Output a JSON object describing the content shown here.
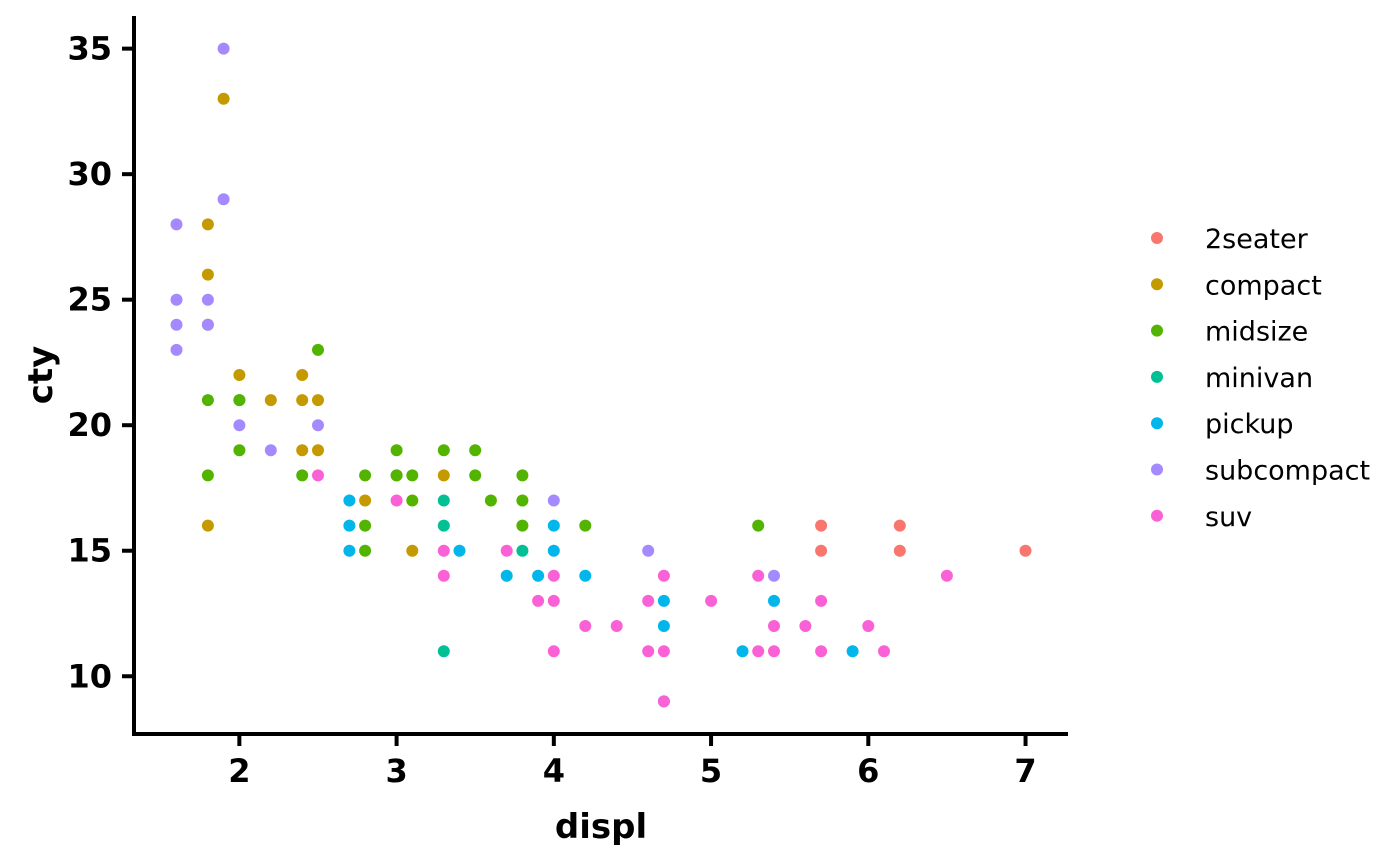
{
  "chart_data": {
    "type": "scatter",
    "xlabel": "displ",
    "ylabel": "cty",
    "xlim": [
      1.33,
      7.27
    ],
    "ylim": [
      7.7,
      36.3
    ],
    "x_ticks": [
      2,
      3,
      4,
      5,
      6,
      7
    ],
    "y_ticks": [
      10,
      15,
      20,
      25,
      30,
      35
    ],
    "grid": false,
    "legend_position": "right",
    "series": [
      {
        "name": "2seater",
        "color": "#F8766D",
        "points": [
          [
            5.7,
            16
          ],
          [
            5.7,
            15
          ],
          [
            6.2,
            16
          ],
          [
            6.2,
            15
          ],
          [
            7.0,
            15
          ]
        ]
      },
      {
        "name": "compact",
        "color": "#C49A00",
        "points": [
          [
            1.8,
            28
          ],
          [
            1.8,
            26
          ],
          [
            1.8,
            24
          ],
          [
            1.8,
            16
          ],
          [
            1.9,
            33
          ],
          [
            2.0,
            22
          ],
          [
            2.0,
            21
          ],
          [
            2.2,
            21
          ],
          [
            2.4,
            22
          ],
          [
            2.4,
            21
          ],
          [
            2.4,
            19
          ],
          [
            2.5,
            21
          ],
          [
            2.5,
            19
          ],
          [
            2.8,
            17
          ],
          [
            3.0,
            18
          ],
          [
            3.1,
            15
          ],
          [
            3.3,
            18
          ]
        ]
      },
      {
        "name": "midsize",
        "color": "#53B400",
        "points": [
          [
            1.8,
            21
          ],
          [
            1.8,
            18
          ],
          [
            2.0,
            21
          ],
          [
            2.0,
            19
          ],
          [
            2.4,
            18
          ],
          [
            2.5,
            23
          ],
          [
            2.8,
            18
          ],
          [
            2.8,
            16
          ],
          [
            2.8,
            15
          ],
          [
            3.0,
            19
          ],
          [
            3.0,
            18
          ],
          [
            3.1,
            18
          ],
          [
            3.1,
            17
          ],
          [
            3.3,
            19
          ],
          [
            3.5,
            19
          ],
          [
            3.5,
            18
          ],
          [
            3.6,
            17
          ],
          [
            3.8,
            18
          ],
          [
            3.8,
            17
          ],
          [
            3.8,
            16
          ],
          [
            4.2,
            16
          ],
          [
            5.3,
            16
          ]
        ]
      },
      {
        "name": "minivan",
        "color": "#00C094",
        "points": [
          [
            3.3,
            17
          ],
          [
            3.3,
            16
          ],
          [
            3.3,
            11
          ],
          [
            3.8,
            15
          ]
        ]
      },
      {
        "name": "pickup",
        "color": "#00B6EB",
        "points": [
          [
            2.7,
            17
          ],
          [
            2.7,
            16
          ],
          [
            2.7,
            15
          ],
          [
            3.4,
            15
          ],
          [
            3.7,
            14
          ],
          [
            3.9,
            14
          ],
          [
            4.0,
            16
          ],
          [
            4.0,
            15
          ],
          [
            4.2,
            14
          ],
          [
            4.7,
            13
          ],
          [
            4.7,
            12
          ],
          [
            5.2,
            11
          ],
          [
            5.4,
            13
          ],
          [
            5.9,
            11
          ],
          [
            4.7,
            9
          ]
        ]
      },
      {
        "name": "subcompact",
        "color": "#A58AFF",
        "points": [
          [
            1.6,
            28
          ],
          [
            1.6,
            25
          ],
          [
            1.6,
            24
          ],
          [
            1.6,
            23
          ],
          [
            1.8,
            25
          ],
          [
            1.8,
            24
          ],
          [
            1.9,
            35
          ],
          [
            1.9,
            29
          ],
          [
            2.0,
            20
          ],
          [
            2.2,
            19
          ],
          [
            2.5,
            20
          ],
          [
            4.0,
            17
          ],
          [
            4.6,
            15
          ],
          [
            5.4,
            14
          ]
        ]
      },
      {
        "name": "suv",
        "color": "#FB61D7",
        "points": [
          [
            2.5,
            18
          ],
          [
            3.0,
            17
          ],
          [
            3.3,
            15
          ],
          [
            3.3,
            14
          ],
          [
            3.7,
            15
          ],
          [
            3.9,
            13
          ],
          [
            4.0,
            14
          ],
          [
            4.0,
            13
          ],
          [
            4.0,
            11
          ],
          [
            4.2,
            12
          ],
          [
            4.4,
            12
          ],
          [
            4.6,
            13
          ],
          [
            4.6,
            11
          ],
          [
            4.7,
            14
          ],
          [
            4.7,
            11
          ],
          [
            4.7,
            9
          ],
          [
            5.0,
            13
          ],
          [
            5.3,
            14
          ],
          [
            5.3,
            11
          ],
          [
            5.4,
            12
          ],
          [
            5.4,
            11
          ],
          [
            5.6,
            12
          ],
          [
            5.7,
            13
          ],
          [
            5.7,
            11
          ],
          [
            6.0,
            12
          ],
          [
            6.1,
            11
          ],
          [
            6.5,
            14
          ]
        ]
      }
    ]
  }
}
